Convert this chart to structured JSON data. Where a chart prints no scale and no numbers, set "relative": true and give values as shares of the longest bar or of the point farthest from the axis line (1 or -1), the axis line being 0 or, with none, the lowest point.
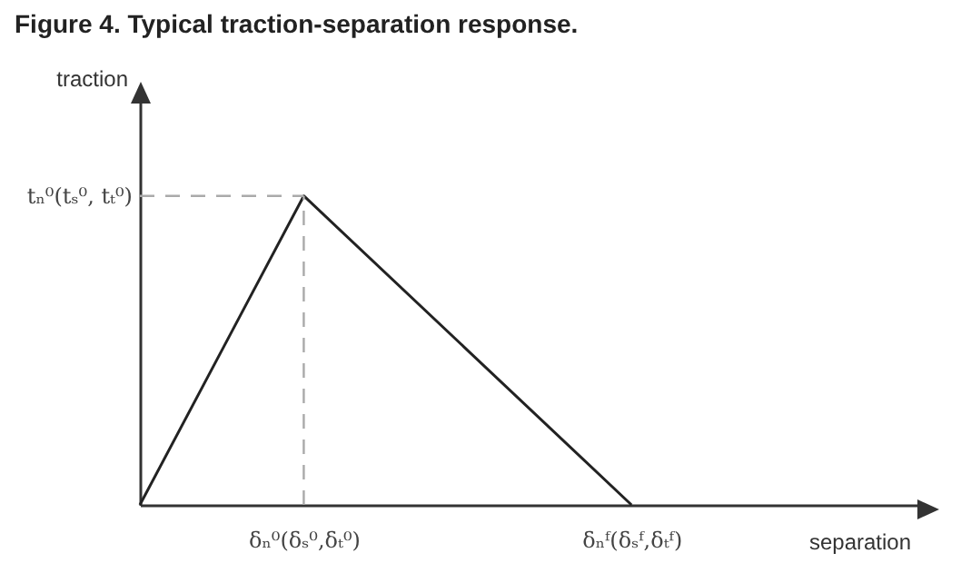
{
  "chart_data": {
    "type": "line",
    "title": "Figure 4. Typical traction-separation response.",
    "xlabel": "separation",
    "ylabel": "traction",
    "relative": true,
    "categories": [
      null,
      "δₙ⁰(δₛ⁰,δₜ⁰)",
      null,
      "δₙᶠ(δₛᶠ,δₜᶠ)"
    ],
    "values": [
      0,
      1,
      0.5,
      0
    ],
    "color": "#222222",
    "ref_lines": [
      {
        "axis": "y",
        "value": 1,
        "label": "tₙ⁰(tₛ⁰, tₜ⁰)",
        "color": "#aaaaaa",
        "line_style": "dashed"
      },
      {
        "axis": "x",
        "value": "δₙ⁰(δₛ⁰,δₜ⁰)",
        "color": "#aaaaaa",
        "line_style": "dashed"
      }
    ],
    "grid": false,
    "marker": "none",
    "line_style": "solid"
  }
}
